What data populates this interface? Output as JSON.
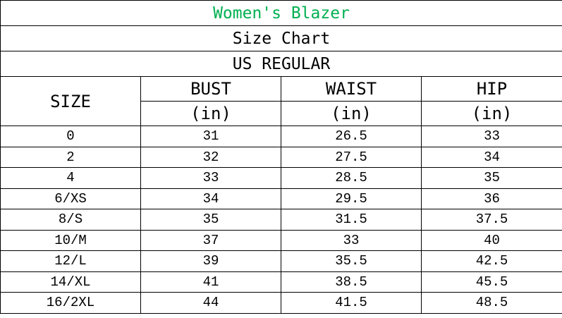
{
  "title": "Women's Blazer",
  "subtitle": "Size Chart",
  "region": "US REGULAR",
  "title_color": "#00b050",
  "headers": {
    "size": "SIZE",
    "bust": "BUST",
    "waist": "WAIST",
    "hip": "HIP",
    "unit": "(in)"
  },
  "rows": [
    [
      "0",
      "31",
      "26.5",
      "33"
    ],
    [
      "2",
      "32",
      "27.5",
      "34"
    ],
    [
      "4",
      "33",
      "28.5",
      "35"
    ],
    [
      "6/XS",
      "34",
      "29.5",
      "36"
    ],
    [
      "8/S",
      "35",
      "31.5",
      "37.5"
    ],
    [
      "10/M",
      "37",
      "33",
      "40"
    ],
    [
      "12/L",
      "39",
      "35.5",
      "42.5"
    ],
    [
      "14/XL",
      "41",
      "38.5",
      "45.5"
    ],
    [
      "16/2XL",
      "44",
      "41.5",
      "48.5"
    ]
  ]
}
